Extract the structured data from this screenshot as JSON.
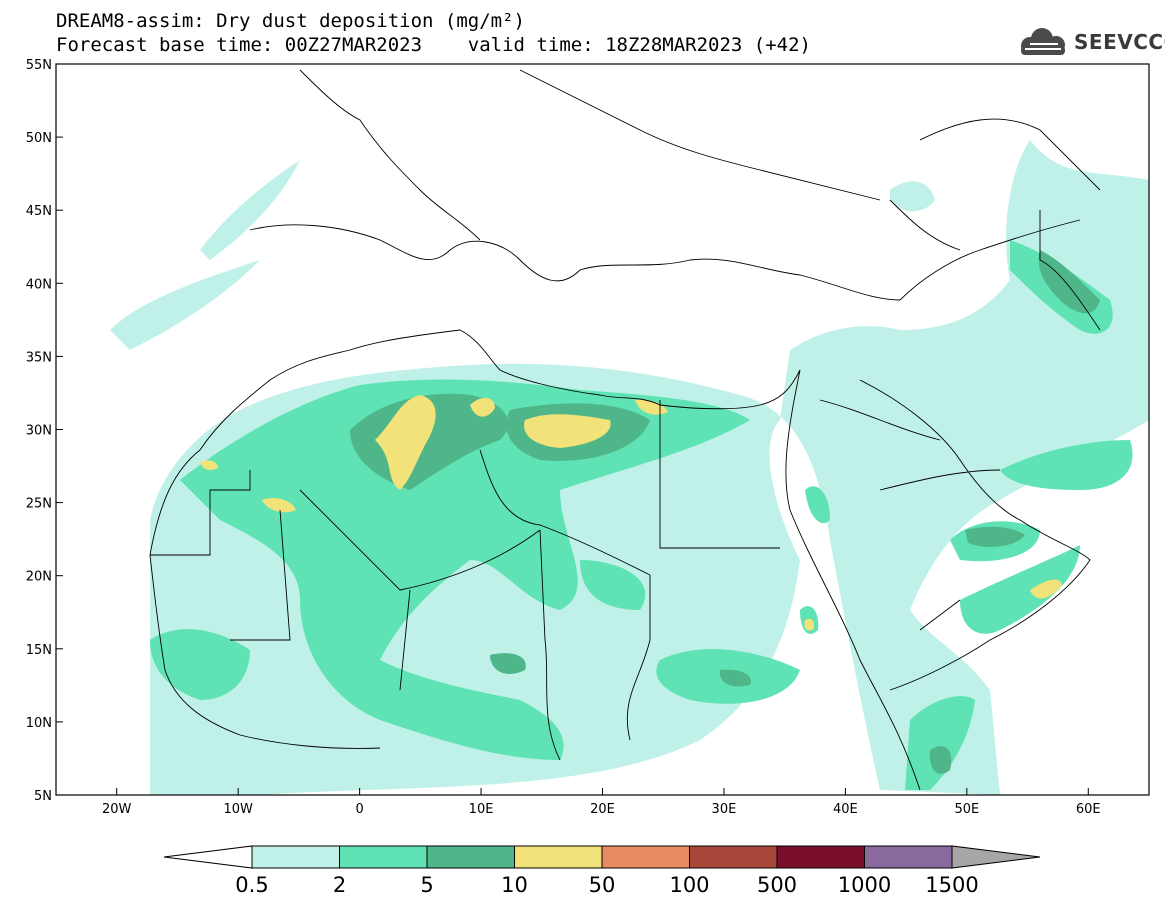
{
  "title": {
    "line1": "DREAM8-assim: Dry dust deposition (mg/m²)",
    "line2": "Forecast base time: 00Z27MAR2023    valid time: 18Z28MAR2023 (+42)"
  },
  "logo": {
    "text": "SEEVCCC",
    "icon": "cloud-icon"
  },
  "map": {
    "lon_range": [
      -25,
      65
    ],
    "lat_range": [
      5,
      55
    ],
    "lon_ticks": [
      {
        "value": -20,
        "label": "20W"
      },
      {
        "value": -10,
        "label": "10W"
      },
      {
        "value": 0,
        "label": "0"
      },
      {
        "value": 10,
        "label": "10E"
      },
      {
        "value": 20,
        "label": "20E"
      },
      {
        "value": 30,
        "label": "30E"
      },
      {
        "value": 40,
        "label": "40E"
      },
      {
        "value": 50,
        "label": "50E"
      },
      {
        "value": 60,
        "label": "60E"
      }
    ],
    "lat_ticks": [
      {
        "value": 55,
        "label": "55N"
      },
      {
        "value": 50,
        "label": "50N"
      },
      {
        "value": 45,
        "label": "45N"
      },
      {
        "value": 40,
        "label": "40N"
      },
      {
        "value": 35,
        "label": "35N"
      },
      {
        "value": 30,
        "label": "30N"
      },
      {
        "value": 25,
        "label": "25N"
      },
      {
        "value": 20,
        "label": "20N"
      },
      {
        "value": 15,
        "label": "15N"
      },
      {
        "value": 10,
        "label": "10N"
      },
      {
        "value": 5,
        "label": "5N"
      }
    ]
  },
  "colorbar": {
    "levels": [
      "0.5",
      "2",
      "5",
      "10",
      "50",
      "100",
      "500",
      "1000",
      "1500"
    ],
    "colors": [
      "#bff1e9",
      "#5fe3b4",
      "#4fb68a",
      "#f2e27a",
      "#e88b63",
      "#a8473a",
      "#7a0f2b",
      "#8a6a9e",
      "#a7a7a7"
    ]
  }
}
